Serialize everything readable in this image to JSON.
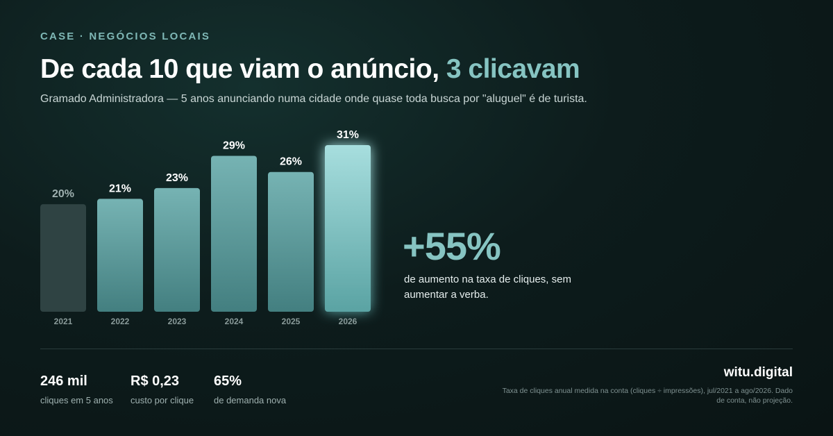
{
  "header": {
    "eyebrow": "CASE · NEGÓCIOS LOCAIS",
    "headline_main": "De cada 10 que viam o anúncio, ",
    "headline_accent": "3 clicavam",
    "subtitle": "Gramado Administradora — 5 anos anunciando numa cidade onde quase toda busca por \"aluguel\" é de turista."
  },
  "chart_data": {
    "type": "bar",
    "categories": [
      "2021",
      "2022",
      "2023",
      "2024",
      "2025",
      "2026"
    ],
    "values": [
      20,
      21,
      23,
      29,
      26,
      31
    ],
    "labels": [
      "20%",
      "21%",
      "23%",
      "29%",
      "26%",
      "31%"
    ],
    "unit": "%",
    "ylim": [
      0,
      31
    ],
    "grid": false,
    "colors": {
      "first": "#2f4343",
      "bar_top": "#76b3b3",
      "bar_bottom": "#437f80",
      "last_top": "#a7dede",
      "last_bottom": "#5aa3a3"
    }
  },
  "highlight": {
    "value": "+55%",
    "description": "de aumento na taxa de cliques, sem aumentar a verba."
  },
  "kpis": [
    {
      "value": "246 mil",
      "label": "cliques em 5 anos"
    },
    {
      "value": "R$ 0,23",
      "label": "custo por clique"
    },
    {
      "value": "65%",
      "label": "de demanda nova"
    }
  ],
  "footer": {
    "brand": "witu.digital",
    "source": "Taxa de cliques anual medida na conta (cliques ÷ impressões), jul/2021 a ago/2026. Dado de conta, não projeção."
  }
}
